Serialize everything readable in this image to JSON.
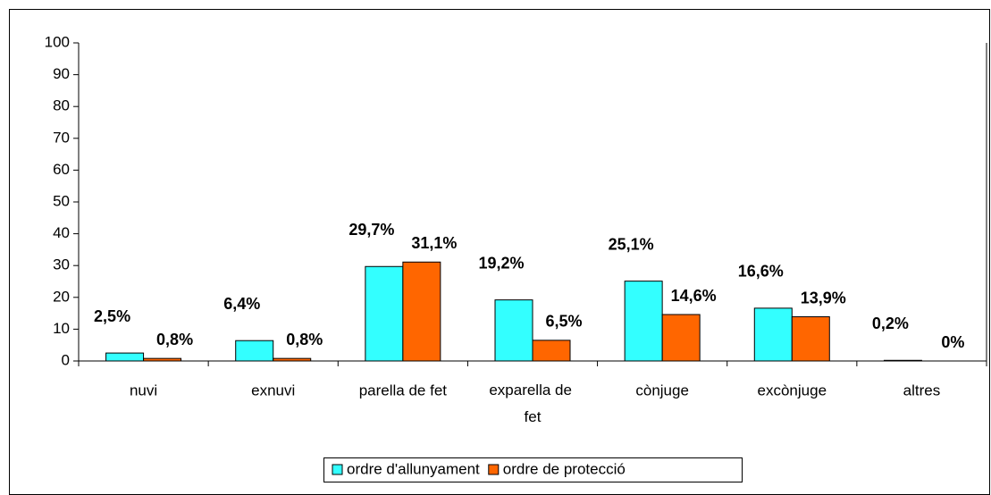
{
  "chart_data": {
    "type": "bar",
    "categories": [
      "nuvi",
      "exnuvi",
      "parella de fet",
      "exparella de fet",
      "cònjuge",
      "excònjuge",
      "altres"
    ],
    "series": [
      {
        "name": "ordre d'allunyament",
        "color": "#33ffff",
        "values": [
          2.5,
          6.4,
          29.7,
          19.2,
          25.1,
          16.6,
          0.2
        ],
        "value_labels": [
          "2,5%",
          "6,4%",
          "29,7%",
          "19,2%",
          "25,1%",
          "16,6%",
          "0,2%"
        ]
      },
      {
        "name": "ordre de protecció",
        "color": "#ff6600",
        "values": [
          0.8,
          0.8,
          31.1,
          6.5,
          14.6,
          13.9,
          0
        ],
        "value_labels": [
          "0,8%",
          "0,8%",
          "31,1%",
          "6,5%",
          "14,6%",
          "13,9%",
          "0%"
        ]
      }
    ],
    "ylim": [
      0,
      100
    ],
    "yticks": [
      0,
      10,
      20,
      30,
      40,
      50,
      60,
      70,
      80,
      90,
      100
    ],
    "legend": "bottom"
  }
}
